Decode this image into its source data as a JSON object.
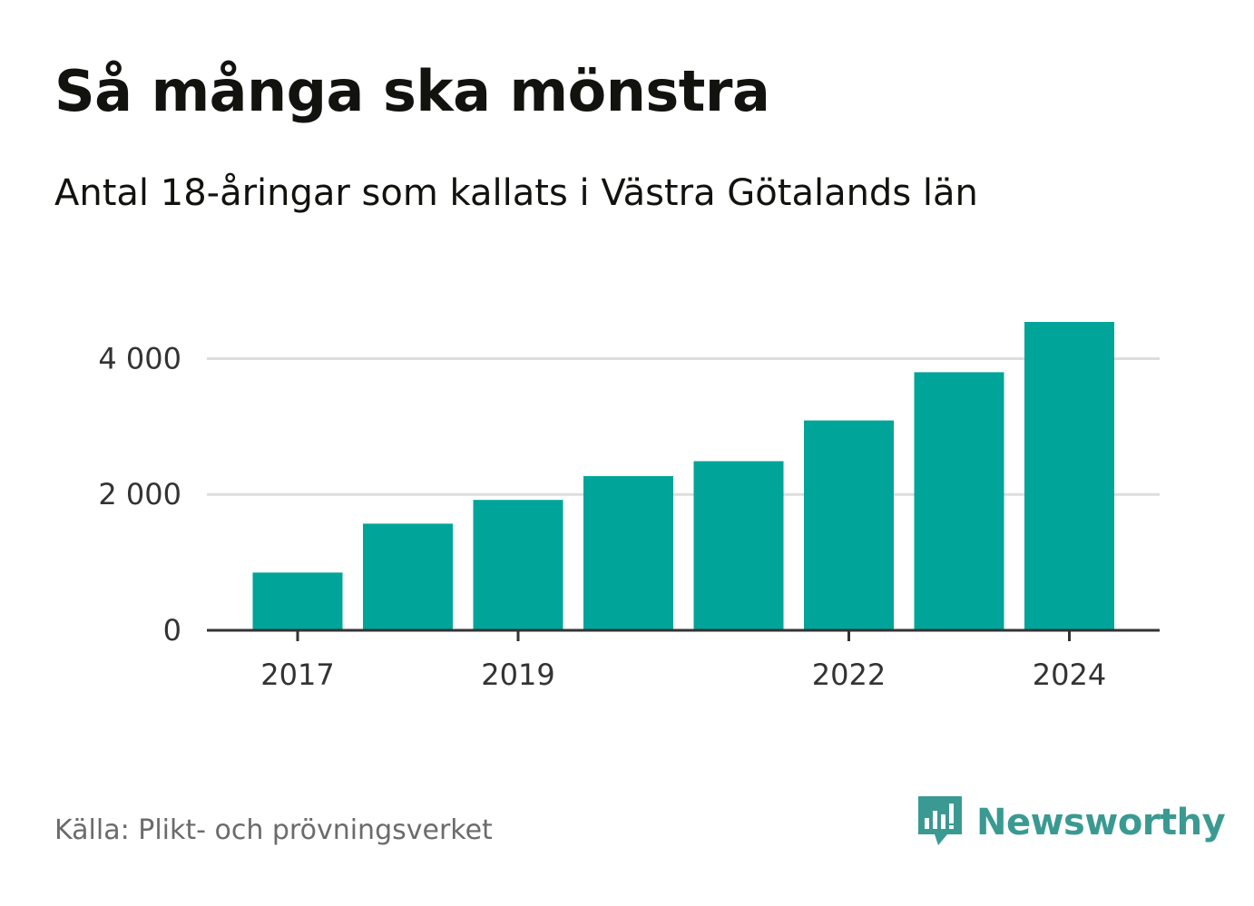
{
  "header": {
    "title": "Så många ska mönstra",
    "subtitle": "Antal 18-åringar som kallats i Västra Götalands län"
  },
  "footer": {
    "source": "Källa: Plikt- och prövningsverket",
    "brand": "Newsworthy",
    "brand_icon": "newsworthy-logo-icon"
  },
  "colors": {
    "bar": "#00a499",
    "grid": "#dddddd",
    "axis": "#333333",
    "text": "#333333",
    "brand": "#3a9a92"
  },
  "chart_data": {
    "type": "bar",
    "title": "Så många ska mönstra",
    "subtitle": "Antal 18-åringar som kallats i Västra Götalands län",
    "categories": [
      "2017",
      "2018",
      "2019",
      "2020",
      "2021",
      "2022",
      "2023",
      "2024"
    ],
    "values": [
      850,
      1570,
      1920,
      2270,
      2490,
      3090,
      3800,
      4540
    ],
    "x_tick_labels": [
      "2017",
      "2019",
      "2022",
      "2024"
    ],
    "y_ticks": [
      0,
      2000,
      4000
    ],
    "y_tick_labels": [
      "0",
      "2 000",
      "4 000"
    ],
    "ylim": [
      0,
      4540
    ],
    "grid": true,
    "xlabel": "",
    "ylabel": ""
  }
}
